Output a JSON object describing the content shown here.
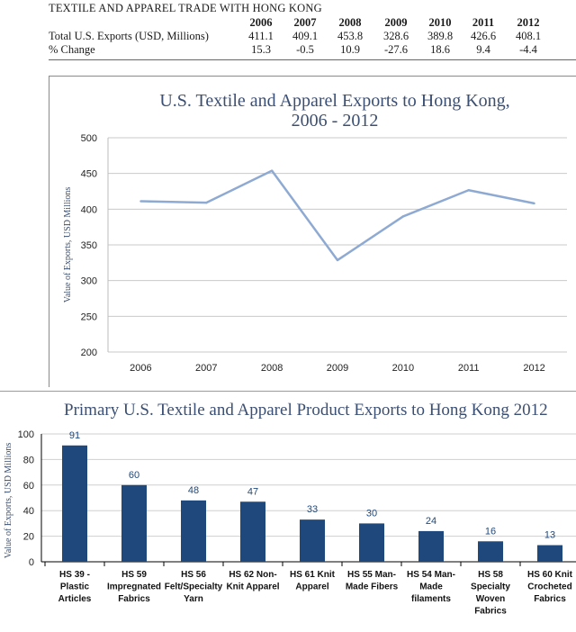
{
  "table": {
    "title": "TEXTILE AND APPAREL TRADE WITH HONG KONG",
    "years": [
      "2006",
      "2007",
      "2008",
      "2009",
      "2010",
      "2011",
      "2012"
    ],
    "rows": [
      {
        "label": "Total U.S. Exports (USD, Millions)",
        "values": [
          "411.1",
          "409.1",
          "453.8",
          "328.6",
          "389.8",
          "426.6",
          "408.1"
        ]
      },
      {
        "label": "% Change",
        "values": [
          "15.3",
          "-0.5",
          "10.9",
          "-27.6",
          "18.6",
          "9.4",
          "-4.4"
        ]
      }
    ]
  },
  "chart_data": [
    {
      "type": "line",
      "title": "U.S. Textile and Apparel Exports to Hong Kong, 2006 - 2012",
      "title_lines": [
        "U.S. Textile and Apparel Exports to Hong Kong,",
        "2006 - 2012"
      ],
      "xlabel": "",
      "ylabel": "Value of Exports, USD Millions",
      "x": [
        "2006",
        "2007",
        "2008",
        "2009",
        "2010",
        "2011",
        "2012"
      ],
      "series": [
        {
          "values": [
            411.1,
            409.1,
            453.8,
            328.6,
            389.8,
            426.6,
            408.1
          ]
        }
      ],
      "ylim": [
        200,
        500
      ],
      "yticks": [
        200,
        250,
        300,
        350,
        400,
        450,
        500
      ],
      "grid": true,
      "color": "#8eaad3"
    },
    {
      "type": "bar",
      "title": "Primary U.S. Textile and Apparel Product Exports to Hong Kong 2012",
      "xlabel": "",
      "ylabel": "Value of Exports, USD Millions",
      "categories": [
        [
          "HS 39 -",
          "Plastic",
          "Articles"
        ],
        [
          "HS 59",
          "Impregnated",
          "Fabrics"
        ],
        [
          "HS 56",
          "Felt/Specialty",
          "Yarn"
        ],
        [
          "HS 62 Non-",
          "Knit Apparel"
        ],
        [
          "HS 61 Knit",
          "Apparel"
        ],
        [
          "HS 55 Man-",
          "Made Fibers"
        ],
        [
          "HS 54 Man-",
          "Made",
          "filaments"
        ],
        [
          "HS 58",
          "Specialty",
          "Woven",
          "Fabrics"
        ],
        [
          "HS 60 Knit",
          "Crocheted",
          "Fabrics"
        ]
      ],
      "values": [
        91,
        60,
        48,
        47,
        33,
        30,
        24,
        16,
        13
      ],
      "ylim": [
        0,
        100
      ],
      "yticks": [
        0,
        20,
        40,
        60,
        80,
        100
      ],
      "grid": true,
      "color": "#1f497d"
    }
  ]
}
